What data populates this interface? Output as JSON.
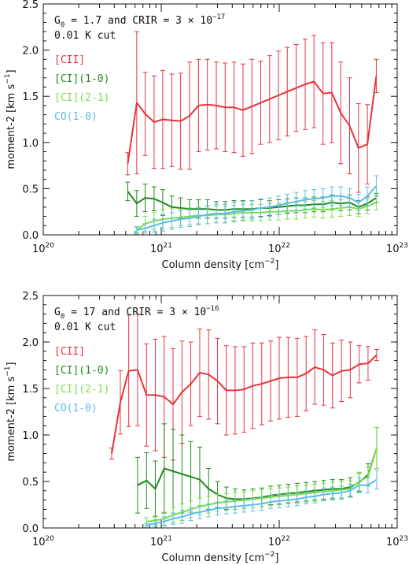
{
  "chart_data": [
    {
      "type": "line",
      "panel": "top",
      "annotation": {
        "line1_parts": [
          "G",
          "0",
          " = 1.7 and CRIR = 3 × 10",
          "−17"
        ],
        "line2": "0.01 K cut"
      },
      "xlabel": "Column density [cm",
      "xlabel_sup": "−2",
      "xlabel_end": "]",
      "ylabel": "moment-2 [km s",
      "ylabel_sup": "−1",
      "ylabel_end": "]",
      "x_scale": "log",
      "xlim": [
        1e+20,
        1e+23
      ],
      "ylim": [
        0.0,
        2.5
      ],
      "x_ticks": [
        {
          "base": "10",
          "exp": "20"
        },
        {
          "base": "10",
          "exp": "21"
        },
        {
          "base": "10",
          "exp": "22"
        },
        {
          "base": "10",
          "exp": "23"
        }
      ],
      "y_ticks": [
        "0.0",
        "0.5",
        "1.0",
        "1.5",
        "2.0",
        "2.5"
      ],
      "legend_position": "top-left",
      "series": [
        {
          "name": "[CII]",
          "color": "#e8333a",
          "x": [
            5.2e+20,
            6.2e+20,
            7.3e+20,
            8.7e+20,
            1.03e+21,
            1.23e+21,
            1.46e+21,
            1.74e+21,
            2.07e+21,
            2.46e+21,
            2.93e+21,
            3.48e+21,
            4.14e+21,
            4.93e+21,
            5.86e+21,
            6.97e+21,
            8.29e+21,
            9.86e+21,
            1.17e+22,
            1.39e+22,
            1.66e+22,
            1.97e+22,
            2.35e+22,
            2.79e+22,
            3.32e+22,
            3.95e+22,
            4.7e+22,
            5.59e+22,
            6.65e+22
          ],
          "y": [
            0.77,
            1.43,
            1.31,
            1.22,
            1.25,
            1.24,
            1.23,
            1.29,
            1.4,
            1.41,
            1.4,
            1.38,
            1.38,
            1.35,
            1.39,
            1.43,
            1.47,
            1.51,
            1.55,
            1.59,
            1.63,
            1.66,
            1.53,
            1.54,
            1.32,
            1.18,
            0.94,
            0.98,
            1.72
          ],
          "err": [
            0.12,
            0.77,
            0.45,
            0.5,
            0.53,
            0.5,
            0.52,
            0.58,
            0.5,
            0.49,
            0.47,
            0.48,
            0.49,
            0.5,
            0.51,
            0.45,
            0.47,
            0.48,
            0.48,
            0.47,
            0.49,
            0.5,
            0.55,
            0.54,
            0.55,
            0.52,
            0.48,
            0.43,
            0.18
          ]
        },
        {
          "name": "[CI](1-0)",
          "color": "#1f8a1f",
          "x": [
            5.2e+20,
            6.2e+20,
            7.3e+20,
            8.7e+20,
            1.03e+21,
            1.23e+21,
            1.46e+21,
            1.74e+21,
            2.07e+21,
            2.46e+21,
            2.93e+21,
            3.48e+21,
            4.14e+21,
            4.93e+21,
            5.86e+21,
            6.97e+21,
            8.29e+21,
            9.86e+21,
            1.17e+22,
            1.39e+22,
            1.66e+22,
            1.97e+22,
            2.35e+22,
            2.79e+22,
            3.32e+22,
            3.95e+22,
            4.7e+22,
            5.59e+22,
            6.65e+22
          ],
          "y": [
            0.47,
            0.34,
            0.4,
            0.39,
            0.35,
            0.3,
            0.29,
            0.28,
            0.28,
            0.28,
            0.27,
            0.27,
            0.28,
            0.28,
            0.28,
            0.29,
            0.29,
            0.3,
            0.31,
            0.32,
            0.32,
            0.33,
            0.33,
            0.35,
            0.34,
            0.35,
            0.3,
            0.34,
            0.4
          ],
          "err": [
            0.1,
            0.14,
            0.15,
            0.13,
            0.14,
            0.12,
            0.11,
            0.1,
            0.1,
            0.1,
            0.09,
            0.09,
            0.09,
            0.09,
            0.09,
            0.09,
            0.08,
            0.08,
            0.08,
            0.08,
            0.08,
            0.08,
            0.08,
            0.08,
            0.08,
            0.08,
            0.07,
            0.07,
            0.05
          ]
        },
        {
          "name": "[CI](2-1)",
          "color": "#7ddc4e",
          "x": [
            6.2e+20,
            7.3e+20,
            8.7e+20,
            1.03e+21,
            1.23e+21,
            1.46e+21,
            1.74e+21,
            2.07e+21,
            2.46e+21,
            2.93e+21,
            3.48e+21,
            4.14e+21,
            4.93e+21,
            5.86e+21,
            6.97e+21,
            8.29e+21,
            9.86e+21,
            1.17e+22,
            1.39e+22,
            1.66e+22,
            1.97e+22,
            2.35e+22,
            2.79e+22,
            3.32e+22,
            3.95e+22,
            4.7e+22,
            5.59e+22,
            6.65e+22
          ],
          "y": [
            0.05,
            0.12,
            0.15,
            0.17,
            0.18,
            0.19,
            0.2,
            0.21,
            0.21,
            0.22,
            0.22,
            0.23,
            0.24,
            0.24,
            0.24,
            0.25,
            0.25,
            0.26,
            0.26,
            0.27,
            0.28,
            0.27,
            0.28,
            0.29,
            0.3,
            0.28,
            0.31,
            0.35
          ],
          "err": [
            0.04,
            0.08,
            0.09,
            0.1,
            0.1,
            0.09,
            0.09,
            0.09,
            0.09,
            0.09,
            0.09,
            0.09,
            0.09,
            0.09,
            0.09,
            0.09,
            0.09,
            0.09,
            0.09,
            0.09,
            0.09,
            0.09,
            0.09,
            0.09,
            0.09,
            0.08,
            0.08,
            0.08
          ]
        },
        {
          "name": "CO(1-0)",
          "color": "#5bbde8",
          "x": [
            6.2e+20,
            7.3e+20,
            8.7e+20,
            1.03e+21,
            1.23e+21,
            1.46e+21,
            1.74e+21,
            2.07e+21,
            2.46e+21,
            2.93e+21,
            3.48e+21,
            4.14e+21,
            4.93e+21,
            5.86e+21,
            6.97e+21,
            8.29e+21,
            9.86e+21,
            1.17e+22,
            1.39e+22,
            1.66e+22,
            1.97e+22,
            2.35e+22,
            2.79e+22,
            3.32e+22,
            3.95e+22,
            4.7e+22,
            5.59e+22,
            6.65e+22
          ],
          "y": [
            0.05,
            0.07,
            0.1,
            0.13,
            0.15,
            0.17,
            0.18,
            0.2,
            0.22,
            0.23,
            0.23,
            0.25,
            0.26,
            0.27,
            0.29,
            0.3,
            0.32,
            0.34,
            0.36,
            0.38,
            0.39,
            0.4,
            0.42,
            0.42,
            0.4,
            0.35,
            0.42,
            0.53
          ],
          "err": [
            0.03,
            0.05,
            0.07,
            0.09,
            0.09,
            0.09,
            0.09,
            0.09,
            0.1,
            0.1,
            0.1,
            0.1,
            0.1,
            0.1,
            0.1,
            0.1,
            0.1,
            0.1,
            0.1,
            0.1,
            0.1,
            0.1,
            0.1,
            0.1,
            0.1,
            0.09,
            0.1,
            0.11
          ]
        }
      ]
    },
    {
      "type": "line",
      "panel": "bottom",
      "annotation": {
        "line1_parts": [
          "G",
          "0",
          " = 17 and CRIR = 3 × 10",
          "−16"
        ],
        "line2": "0.01 K cut"
      },
      "xlabel": "Column density [cm",
      "xlabel_sup": "−2",
      "xlabel_end": "]",
      "ylabel": "moment-2 [km s",
      "ylabel_sup": "−1",
      "ylabel_end": "]",
      "x_scale": "log",
      "xlim": [
        1e+20,
        1e+23
      ],
      "ylim": [
        0.0,
        2.5
      ],
      "x_ticks": [
        {
          "base": "10",
          "exp": "20"
        },
        {
          "base": "10",
          "exp": "21"
        },
        {
          "base": "10",
          "exp": "22"
        },
        {
          "base": "10",
          "exp": "23"
        }
      ],
      "y_ticks": [
        "0.0",
        "0.5",
        "1.0",
        "1.5",
        "2.0",
        "2.5"
      ],
      "legend_position": "top-left",
      "series": [
        {
          "name": "[CII]",
          "color": "#e8333a",
          "x": [
            3.8e+20,
            4.5e+20,
            5.3e+20,
            6.3e+20,
            7.5e+20,
            8.9e+20,
            1.06e+21,
            1.26e+21,
            1.5e+21,
            1.78e+21,
            2.12e+21,
            2.52e+21,
            3e+21,
            3.56e+21,
            4.23e+21,
            5.03e+21,
            5.98e+21,
            7.11e+21,
            8.45e+21,
            1e+22,
            1.19e+22,
            1.42e+22,
            1.69e+22,
            2e+22,
            2.38e+22,
            2.83e+22,
            3.37e+22,
            4e+22,
            4.76e+22,
            5.66e+22,
            6.7e+22
          ],
          "y": [
            0.8,
            1.35,
            1.69,
            1.7,
            1.43,
            1.43,
            1.41,
            1.33,
            1.46,
            1.55,
            1.67,
            1.65,
            1.58,
            1.48,
            1.48,
            1.49,
            1.53,
            1.55,
            1.58,
            1.61,
            1.62,
            1.62,
            1.66,
            1.73,
            1.7,
            1.64,
            1.69,
            1.7,
            1.76,
            1.77,
            1.86
          ],
          "err": [
            0.06,
            0.34,
            0.6,
            0.6,
            0.55,
            0.6,
            0.65,
            0.6,
            0.55,
            0.45,
            0.47,
            0.48,
            0.46,
            0.48,
            0.47,
            0.46,
            0.46,
            0.44,
            0.43,
            0.44,
            0.43,
            0.42,
            0.4,
            0.4,
            0.38,
            0.35,
            0.33,
            0.3,
            0.2,
            0.18,
            0.06
          ]
        },
        {
          "name": "[CI](1-0)",
          "color": "#1f8a1f",
          "x": [
            6.3e+20,
            7.5e+20,
            8.9e+20,
            1.06e+21,
            1.26e+21,
            1.5e+21,
            1.78e+21,
            2.12e+21,
            2.52e+21,
            3e+21,
            3.56e+21,
            4.23e+21,
            5.03e+21,
            5.98e+21,
            7.11e+21,
            8.45e+21,
            1e+22,
            1.19e+22,
            1.42e+22,
            1.69e+22,
            2e+22,
            2.38e+22,
            2.83e+22,
            3.37e+22,
            4e+22,
            4.76e+22,
            5.66e+22,
            6.7e+22
          ],
          "y": [
            0.46,
            0.51,
            0.42,
            0.64,
            0.61,
            0.58,
            0.55,
            0.52,
            0.42,
            0.36,
            0.32,
            0.31,
            0.31,
            0.32,
            0.33,
            0.35,
            0.36,
            0.37,
            0.38,
            0.39,
            0.4,
            0.41,
            0.42,
            0.42,
            0.44,
            0.49,
            0.57,
            0.86
          ],
          "err": [
            0.3,
            0.3,
            0.3,
            0.48,
            0.45,
            0.42,
            0.38,
            0.35,
            0.22,
            0.14,
            0.12,
            0.11,
            0.1,
            0.1,
            0.1,
            0.1,
            0.1,
            0.1,
            0.1,
            0.1,
            0.1,
            0.1,
            0.1,
            0.1,
            0.1,
            0.1,
            0.12,
            0.22
          ]
        },
        {
          "name": "[CI](2-1)",
          "color": "#7ddc4e",
          "x": [
            7.5e+20,
            8.9e+20,
            1.06e+21,
            1.26e+21,
            1.5e+21,
            1.78e+21,
            2.12e+21,
            2.52e+21,
            3e+21,
            3.56e+21,
            4.23e+21,
            5.03e+21,
            5.98e+21,
            7.11e+21,
            8.45e+21,
            1e+22,
            1.19e+22,
            1.42e+22,
            1.69e+22,
            2e+22,
            2.38e+22,
            2.83e+22,
            3.37e+22,
            4e+22,
            4.76e+22,
            5.66e+22,
            6.7e+22
          ],
          "y": [
            0.07,
            0.08,
            0.1,
            0.14,
            0.17,
            0.2,
            0.23,
            0.25,
            0.27,
            0.28,
            0.29,
            0.3,
            0.31,
            0.32,
            0.33,
            0.34,
            0.35,
            0.36,
            0.37,
            0.38,
            0.39,
            0.4,
            0.41,
            0.42,
            0.5,
            0.55,
            0.86
          ],
          "err": [
            0.04,
            0.05,
            0.07,
            0.08,
            0.09,
            0.09,
            0.09,
            0.09,
            0.09,
            0.09,
            0.09,
            0.09,
            0.09,
            0.09,
            0.09,
            0.09,
            0.09,
            0.09,
            0.09,
            0.09,
            0.09,
            0.09,
            0.09,
            0.09,
            0.1,
            0.1,
            0.22
          ]
        },
        {
          "name": "CO(1-0)",
          "color": "#5bbde8",
          "x": [
            7.5e+20,
            8.9e+20,
            1.06e+21,
            1.26e+21,
            1.5e+21,
            1.78e+21,
            2.12e+21,
            2.52e+21,
            3e+21,
            3.56e+21,
            4.23e+21,
            5.03e+21,
            5.98e+21,
            7.11e+21,
            8.45e+21,
            1e+22,
            1.19e+22,
            1.42e+22,
            1.69e+22,
            2e+22,
            2.38e+22,
            2.83e+22,
            3.37e+22,
            4e+22,
            4.76e+22,
            5.66e+22,
            6.7e+22
          ],
          "y": [
            0.03,
            0.05,
            0.07,
            0.1,
            0.12,
            0.15,
            0.17,
            0.19,
            0.21,
            0.22,
            0.23,
            0.24,
            0.25,
            0.26,
            0.28,
            0.29,
            0.3,
            0.31,
            0.33,
            0.34,
            0.36,
            0.37,
            0.38,
            0.4,
            0.46,
            0.46,
            0.52
          ],
          "err": [
            0.02,
            0.04,
            0.05,
            0.06,
            0.07,
            0.07,
            0.07,
            0.07,
            0.07,
            0.07,
            0.07,
            0.07,
            0.07,
            0.07,
            0.07,
            0.07,
            0.07,
            0.07,
            0.07,
            0.07,
            0.07,
            0.07,
            0.07,
            0.07,
            0.08,
            0.08,
            0.1
          ]
        }
      ]
    }
  ]
}
